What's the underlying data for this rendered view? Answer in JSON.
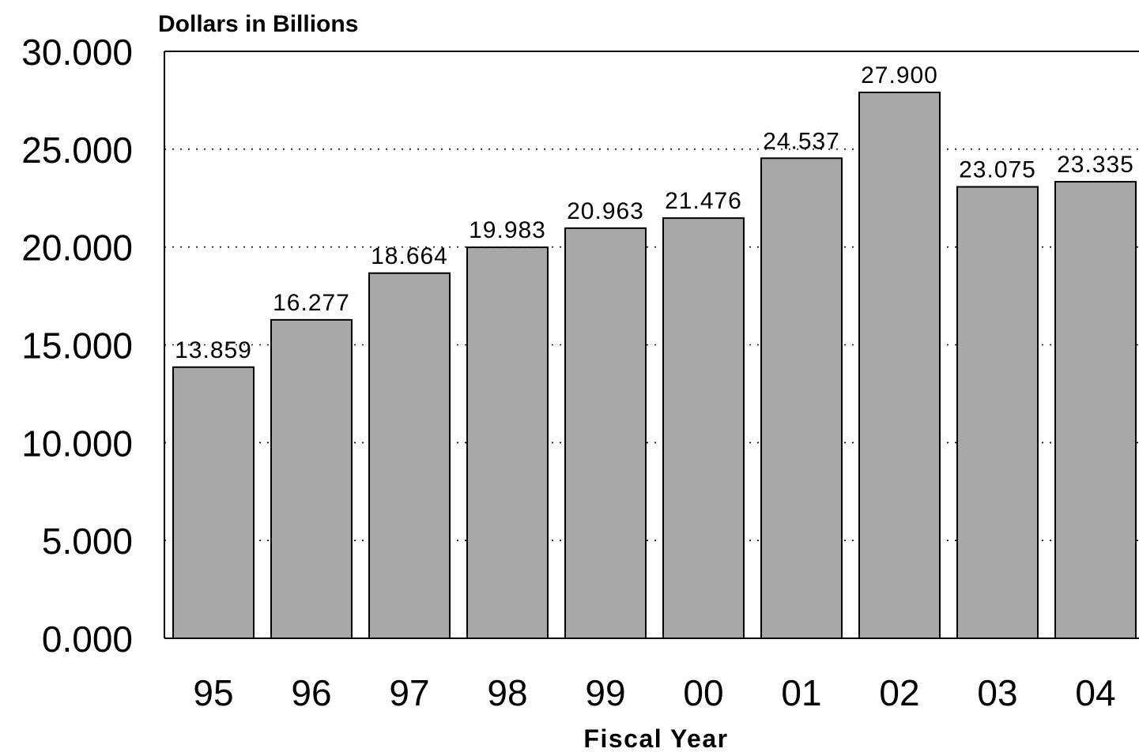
{
  "chart_data": {
    "type": "bar",
    "categories": [
      "95",
      "96",
      "97",
      "98",
      "99",
      "00",
      "01",
      "02",
      "03",
      "04"
    ],
    "values": [
      13.859,
      16.277,
      18.664,
      19.983,
      20.963,
      21.476,
      24.537,
      27.9,
      23.075,
      23.335
    ],
    "value_labels": [
      "13.859",
      "16.277",
      "18.664",
      "19.983",
      "20.963",
      "21.476",
      "24.537",
      "27.900",
      "23.075",
      "23.335"
    ],
    "title": "",
    "unit_label": "Dollars in Billions",
    "xlabel": "Fiscal Year",
    "ylabel": "",
    "ylim": [
      0,
      30
    ],
    "yticks": [
      0,
      5,
      10,
      15,
      20,
      25,
      30
    ],
    "ytick_labels": [
      "0.000",
      "5.000",
      "10.000",
      "15.000",
      "20.000",
      "25.000",
      "30.000"
    ],
    "grid": "dotted horizontal",
    "legend": "none",
    "bar_color": "#a8a8a8",
    "bar_edge_color": "#000000"
  }
}
